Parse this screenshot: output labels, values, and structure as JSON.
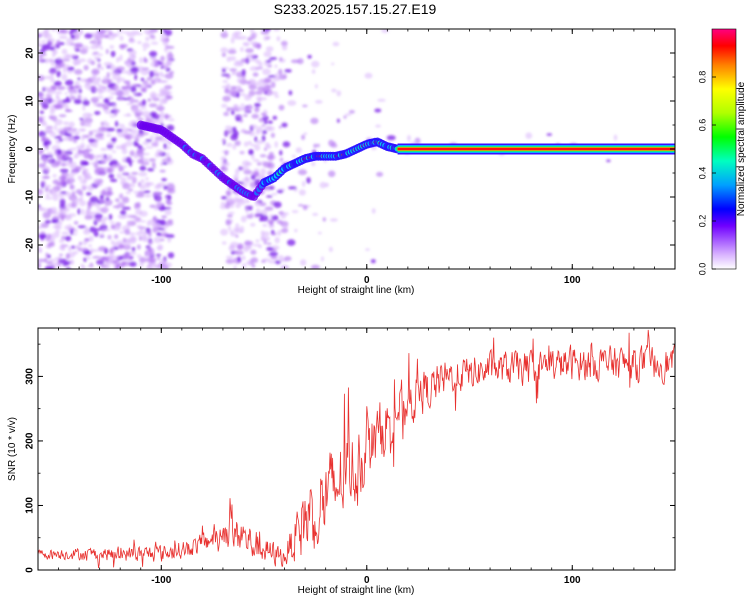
{
  "title": "S233.2025.157.15.27.E19",
  "chart_data": [
    {
      "type": "heatmap",
      "xlabel": "Height of straight line (km)",
      "ylabel": "Frequency (Hz)",
      "xlim": [
        -160,
        150
      ],
      "ylim": [
        -25,
        25
      ],
      "xticks": [
        -100,
        0,
        100
      ],
      "yticks": [
        -20,
        -10,
        0,
        10,
        20
      ],
      "colorbar": {
        "label": "Normalized spectral amplitude",
        "range": [
          0,
          1
        ],
        "ticks": [
          "0.0",
          "0.2",
          "0.4",
          "0.6",
          "0.8"
        ]
      },
      "ridge": {
        "x": [
          -110,
          -100,
          -95,
          -90,
          -85,
          -80,
          -75,
          -70,
          -65,
          -60,
          -55,
          -50,
          -45,
          -40,
          -35,
          -30,
          -25,
          -20,
          -15,
          -10,
          -5,
          0,
          5,
          10,
          15,
          150
        ],
        "y": [
          5,
          4,
          2.5,
          1,
          -1,
          -2,
          -4,
          -6,
          -7.5,
          -9,
          -10,
          -7,
          -6,
          -4,
          -3,
          -2,
          -1.5,
          -1.5,
          -1.5,
          -1,
          0,
          1,
          1.5,
          0.5,
          0,
          0
        ]
      },
      "strong_band": {
        "x_from": 15,
        "x_to": 150,
        "y": 0
      }
    },
    {
      "type": "line",
      "xlabel": "Height of straight line (km)",
      "ylabel": "SNR (10 * v/v)",
      "xlim": [
        -160,
        150
      ],
      "ylim": [
        0,
        375
      ],
      "xticks": [
        -100,
        0,
        100
      ],
      "yticks": [
        0,
        100,
        200,
        300
      ],
      "color": "#e8312f",
      "trend": {
        "x": [
          -160,
          -120,
          -100,
          -80,
          -70,
          -60,
          -50,
          -40,
          -30,
          -20,
          -10,
          0,
          10,
          20,
          30,
          40,
          60,
          80,
          100,
          120,
          150
        ],
        "y": [
          25,
          25,
          25,
          40,
          60,
          50,
          30,
          20,
          80,
          110,
          150,
          180,
          230,
          260,
          280,
          300,
          310,
          315,
          320,
          320,
          320
        ]
      },
      "noise_amplitude": {
        "x": [
          -160,
          -80,
          -60,
          -40,
          -30,
          -20,
          0,
          20,
          40,
          150
        ],
        "y": [
          10,
          20,
          40,
          20,
          80,
          90,
          70,
          50,
          35,
          35
        ]
      }
    }
  ]
}
